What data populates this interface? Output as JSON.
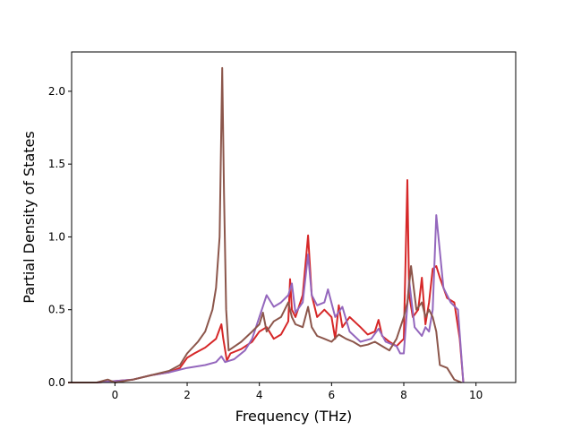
{
  "chart_data": {
    "type": "line",
    "title": "",
    "xlabel": "Frequency (THz)",
    "ylabel": "Partial Density of States",
    "xlim": [
      -1.2,
      11.1
    ],
    "ylim": [
      0,
      2.27
    ],
    "xticks": [
      0,
      2,
      4,
      6,
      8,
      10
    ],
    "xtick_labels": [
      "0",
      "2",
      "4",
      "6",
      "8",
      "10"
    ],
    "yticks": [
      0,
      0.5,
      1.0,
      1.5,
      2.0
    ],
    "ytick_labels": [
      "0.0",
      "0.5",
      "1.0",
      "1.5",
      "2.0"
    ],
    "grid": false,
    "legend": "none",
    "series": [
      {
        "color": "#d62728",
        "x": [
          -1.3,
          -0.5,
          0.0,
          0.5,
          1.0,
          1.5,
          1.8,
          2.0,
          2.2,
          2.5,
          2.8,
          2.95,
          3.0,
          3.1,
          3.2,
          3.5,
          3.8,
          4.0,
          4.2,
          4.4,
          4.6,
          4.8,
          4.85,
          4.9,
          5.0,
          5.2,
          5.35,
          5.45,
          5.6,
          5.8,
          6.0,
          6.1,
          6.2,
          6.3,
          6.5,
          6.8,
          7.0,
          7.2,
          7.3,
          7.4,
          7.6,
          7.8,
          8.0,
          8.1,
          8.15,
          8.25,
          8.4,
          8.5,
          8.6,
          8.7,
          8.8,
          8.9,
          9.0,
          9.2,
          9.4,
          9.55,
          9.65
        ],
        "y": [
          0.0,
          0.0,
          0.01,
          0.02,
          0.05,
          0.07,
          0.1,
          0.17,
          0.2,
          0.24,
          0.3,
          0.4,
          0.3,
          0.15,
          0.2,
          0.23,
          0.28,
          0.35,
          0.38,
          0.3,
          0.33,
          0.42,
          0.71,
          0.5,
          0.45,
          0.6,
          1.01,
          0.6,
          0.45,
          0.5,
          0.45,
          0.3,
          0.53,
          0.38,
          0.45,
          0.38,
          0.33,
          0.35,
          0.43,
          0.32,
          0.28,
          0.25,
          0.3,
          1.39,
          0.6,
          0.45,
          0.5,
          0.72,
          0.4,
          0.55,
          0.78,
          0.8,
          0.72,
          0.58,
          0.55,
          0.3,
          0.0
        ]
      },
      {
        "color": "#9467bd",
        "x": [
          -1.3,
          -0.5,
          0.0,
          0.5,
          1.0,
          1.5,
          2.0,
          2.5,
          2.8,
          2.95,
          3.05,
          3.3,
          3.6,
          3.8,
          4.0,
          4.2,
          4.4,
          4.6,
          4.8,
          4.9,
          5.0,
          5.2,
          5.35,
          5.45,
          5.6,
          5.8,
          5.9,
          6.1,
          6.3,
          6.5,
          6.8,
          7.1,
          7.3,
          7.5,
          7.8,
          7.9,
          8.0,
          8.15,
          8.3,
          8.5,
          8.6,
          8.7,
          8.8,
          8.9,
          9.0,
          9.1,
          9.3,
          9.5,
          9.65
        ],
        "y": [
          0.0,
          0.0,
          0.01,
          0.02,
          0.05,
          0.07,
          0.1,
          0.12,
          0.14,
          0.18,
          0.14,
          0.16,
          0.22,
          0.3,
          0.45,
          0.6,
          0.52,
          0.55,
          0.6,
          0.68,
          0.48,
          0.55,
          0.88,
          0.6,
          0.53,
          0.55,
          0.64,
          0.45,
          0.52,
          0.35,
          0.28,
          0.3,
          0.37,
          0.28,
          0.25,
          0.2,
          0.2,
          0.7,
          0.38,
          0.32,
          0.38,
          0.35,
          0.5,
          1.15,
          0.9,
          0.65,
          0.55,
          0.5,
          0.0
        ]
      },
      {
        "color": "#8c564b",
        "x": [
          -1.3,
          -0.5,
          -0.2,
          0.0,
          0.5,
          1.0,
          1.5,
          1.8,
          2.0,
          2.3,
          2.5,
          2.7,
          2.8,
          2.9,
          2.97,
          3.02,
          3.08,
          3.15,
          3.5,
          3.8,
          4.0,
          4.1,
          4.2,
          4.4,
          4.6,
          4.8,
          4.9,
          5.0,
          5.2,
          5.35,
          5.45,
          5.6,
          5.8,
          6.0,
          6.2,
          6.4,
          6.6,
          6.8,
          7.0,
          7.2,
          7.4,
          7.6,
          7.8,
          8.0,
          8.1,
          8.2,
          8.35,
          8.5,
          8.6,
          8.7,
          8.8,
          8.9,
          9.0,
          9.2,
          9.4,
          9.6
        ],
        "y": [
          0.0,
          0.0,
          0.02,
          0.0,
          0.02,
          0.05,
          0.08,
          0.12,
          0.2,
          0.28,
          0.35,
          0.5,
          0.65,
          1.0,
          2.16,
          1.3,
          0.5,
          0.22,
          0.28,
          0.35,
          0.4,
          0.48,
          0.35,
          0.42,
          0.45,
          0.55,
          0.45,
          0.4,
          0.38,
          0.52,
          0.38,
          0.32,
          0.3,
          0.28,
          0.33,
          0.3,
          0.28,
          0.25,
          0.26,
          0.28,
          0.25,
          0.22,
          0.3,
          0.45,
          0.55,
          0.8,
          0.5,
          0.55,
          0.45,
          0.5,
          0.45,
          0.35,
          0.12,
          0.1,
          0.02,
          0.0
        ]
      }
    ]
  }
}
